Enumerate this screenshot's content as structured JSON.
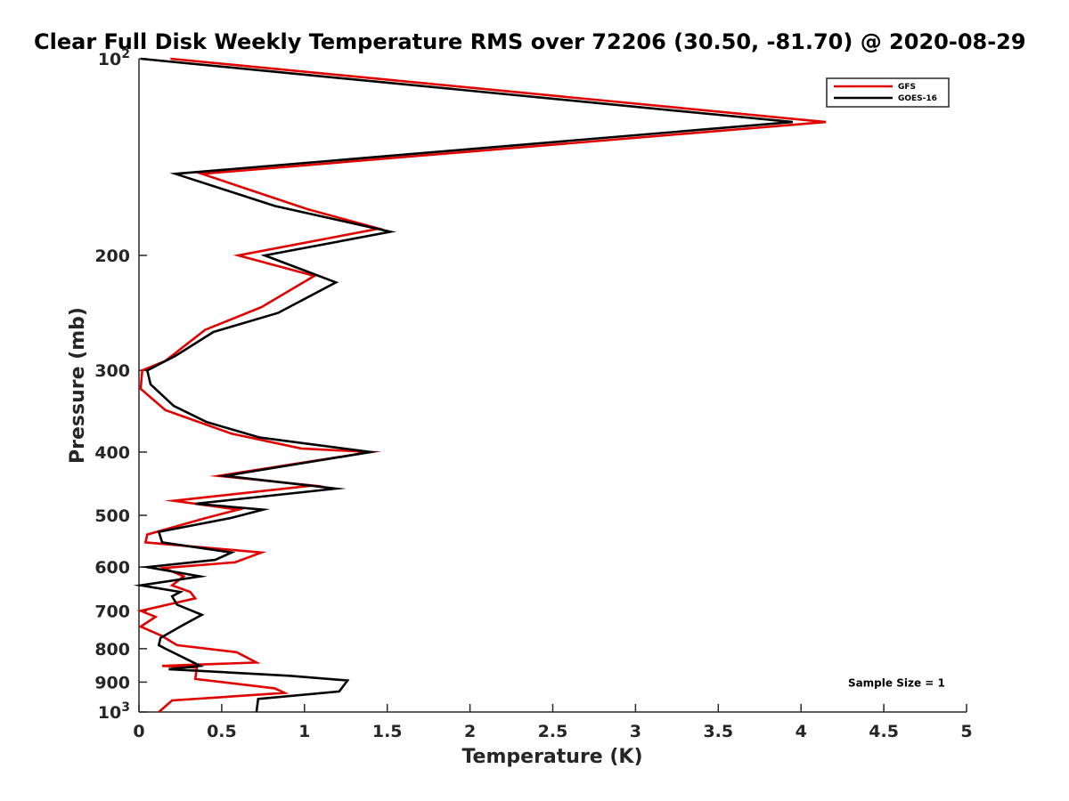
{
  "chart_data": {
    "type": "line",
    "title": "Clear Full Disk Weekly Temperature RMS over 72206 (30.50, -81.70) @ 2020-08-29",
    "xlabel": "Temperature (K)",
    "ylabel": "Pressure (mb)",
    "xlim": [
      0,
      5
    ],
    "ylim": [
      100,
      1000
    ],
    "y_scale": "log",
    "y_reversed": true,
    "grid": false,
    "legend_position": "top-right",
    "x_ticks": [
      {
        "value": 0,
        "label": "0"
      },
      {
        "value": 0.5,
        "label": "0.5"
      },
      {
        "value": 1,
        "label": "1"
      },
      {
        "value": 1.5,
        "label": "1.5"
      },
      {
        "value": 2,
        "label": "2"
      },
      {
        "value": 2.5,
        "label": "2.5"
      },
      {
        "value": 3,
        "label": "3"
      },
      {
        "value": 3.5,
        "label": "3.5"
      },
      {
        "value": 4,
        "label": "4"
      },
      {
        "value": 4.5,
        "label": "4.5"
      },
      {
        "value": 5,
        "label": "5"
      }
    ],
    "y_ticks": [
      {
        "value": 100,
        "label": "10",
        "sup": "2"
      },
      {
        "value": 200,
        "label": "200"
      },
      {
        "value": 300,
        "label": "300"
      },
      {
        "value": 400,
        "label": "400"
      },
      {
        "value": 500,
        "label": "500"
      },
      {
        "value": 600,
        "label": "600"
      },
      {
        "value": 700,
        "label": "700"
      },
      {
        "value": 800,
        "label": "800"
      },
      {
        "value": 900,
        "label": "900"
      },
      {
        "value": 1000,
        "label": "10",
        "sup": "3"
      }
    ],
    "series": [
      {
        "name": "GFS",
        "color": "#e00000",
        "points": [
          [
            0.19,
            100
          ],
          [
            4.15,
            125
          ],
          [
            0.38,
            150
          ],
          [
            1.02,
            170
          ],
          [
            1.45,
            182
          ],
          [
            0.6,
            200
          ],
          [
            1.06,
            215
          ],
          [
            0.74,
            240
          ],
          [
            0.4,
            260
          ],
          [
            0.16,
            290
          ],
          [
            0.02,
            300
          ],
          [
            0.01,
            320
          ],
          [
            0.16,
            345
          ],
          [
            0.56,
            375
          ],
          [
            0.98,
            395
          ],
          [
            1.4,
            400
          ],
          [
            0.48,
            435
          ],
          [
            1.05,
            450
          ],
          [
            0.21,
            475
          ],
          [
            0.6,
            490
          ],
          [
            0.4,
            505
          ],
          [
            0.05,
            535
          ],
          [
            0.04,
            550
          ],
          [
            0.74,
            570
          ],
          [
            0.58,
            590
          ],
          [
            0.15,
            602
          ],
          [
            0.27,
            620
          ],
          [
            0.2,
            640
          ],
          [
            0.31,
            655
          ],
          [
            0.34,
            670
          ],
          [
            0.01,
            700
          ],
          [
            0.1,
            715
          ],
          [
            0.01,
            740
          ],
          [
            0.14,
            765
          ],
          [
            0.23,
            790
          ],
          [
            0.59,
            810
          ],
          [
            0.71,
            840
          ],
          [
            0.14,
            850
          ],
          [
            0.35,
            855
          ],
          [
            0.34,
            890
          ],
          [
            0.82,
            920
          ],
          [
            0.88,
            935
          ],
          [
            0.2,
            960
          ],
          [
            0.12,
            1000
          ]
        ]
      },
      {
        "name": "GOES-16",
        "color": "#000000",
        "points": [
          [
            0.01,
            100
          ],
          [
            3.95,
            125
          ],
          [
            0.22,
            150
          ],
          [
            0.82,
            168
          ],
          [
            1.52,
            184
          ],
          [
            0.76,
            200
          ],
          [
            1.19,
            220
          ],
          [
            0.84,
            245
          ],
          [
            0.45,
            262
          ],
          [
            0.22,
            285
          ],
          [
            0.05,
            300
          ],
          [
            0.07,
            315
          ],
          [
            0.21,
            340
          ],
          [
            0.41,
            360
          ],
          [
            0.73,
            380
          ],
          [
            1.4,
            400
          ],
          [
            0.52,
            435
          ],
          [
            1.19,
            455
          ],
          [
            0.34,
            480
          ],
          [
            0.75,
            490
          ],
          [
            0.55,
            505
          ],
          [
            0.12,
            530
          ],
          [
            0.14,
            550
          ],
          [
            0.56,
            570
          ],
          [
            0.46,
            585
          ],
          [
            0.05,
            600
          ],
          [
            0.37,
            620
          ],
          [
            0.01,
            640
          ],
          [
            0.25,
            655
          ],
          [
            0.2,
            665
          ],
          [
            0.23,
            685
          ],
          [
            0.38,
            710
          ],
          [
            0.25,
            740
          ],
          [
            0.13,
            770
          ],
          [
            0.12,
            790
          ],
          [
            0.16,
            800
          ],
          [
            0.33,
            840
          ],
          [
            0.37,
            850
          ],
          [
            0.18,
            860
          ],
          [
            0.91,
            880
          ],
          [
            1.26,
            895
          ],
          [
            1.21,
            930
          ],
          [
            0.72,
            955
          ],
          [
            0.71,
            1000
          ]
        ]
      }
    ],
    "annotations": [
      {
        "text": "Sample Size = 1",
        "x": 4.87,
        "y": 900
      }
    ]
  }
}
